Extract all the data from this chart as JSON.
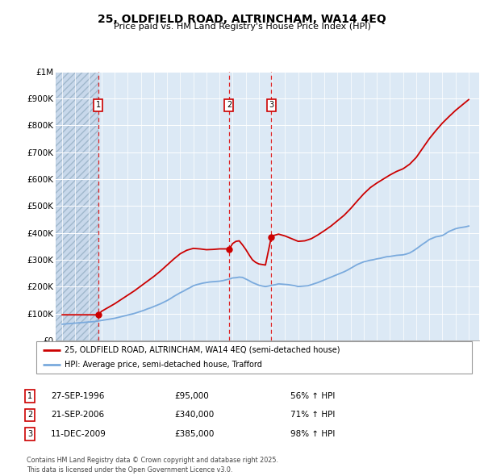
{
  "title": "25, OLDFIELD ROAD, ALTRINCHAM, WA14 4EQ",
  "subtitle": "Price paid vs. HM Land Registry's House Price Index (HPI)",
  "ylim": [
    0,
    1000000
  ],
  "yticks": [
    0,
    100000,
    200000,
    300000,
    400000,
    500000,
    600000,
    700000,
    800000,
    900000,
    1000000
  ],
  "ytick_labels": [
    "£0",
    "£100K",
    "£200K",
    "£300K",
    "£400K",
    "£500K",
    "£600K",
    "£700K",
    "£800K",
    "£900K",
    "£1M"
  ],
  "xlim_start": 1993.5,
  "xlim_end": 2025.8,
  "purchases": [
    {
      "label": "1",
      "date": 1996.74,
      "price": 95000
    },
    {
      "label": "2",
      "date": 2006.72,
      "price": 340000
    },
    {
      "label": "3",
      "date": 2009.95,
      "price": 385000
    }
  ],
  "hpi_line_color": "#7aaadd",
  "price_line_color": "#cc0000",
  "background_color": "#dce9f5",
  "grid_color": "#ffffff",
  "legend_label_price": "25, OLDFIELD ROAD, ALTRINCHAM, WA14 4EQ (semi-detached house)",
  "legend_label_hpi": "HPI: Average price, semi-detached house, Trafford",
  "table_rows": [
    {
      "num": "1",
      "date": "27-SEP-1996",
      "price": "£95,000",
      "hpi": "56% ↑ HPI"
    },
    {
      "num": "2",
      "date": "21-SEP-2006",
      "price": "£340,000",
      "hpi": "71% ↑ HPI"
    },
    {
      "num": "3",
      "date": "11-DEC-2009",
      "price": "£385,000",
      "hpi": "98% ↑ HPI"
    }
  ],
  "footer": "Contains HM Land Registry data © Crown copyright and database right 2025.\nThis data is licensed under the Open Government Licence v3.0.",
  "hpi_data_x": [
    1994.0,
    1994.25,
    1994.5,
    1994.75,
    1995.0,
    1995.25,
    1995.5,
    1995.75,
    1996.0,
    1996.25,
    1996.5,
    1996.75,
    1997.0,
    1997.25,
    1997.5,
    1997.75,
    1998.0,
    1998.25,
    1998.5,
    1998.75,
    1999.0,
    1999.25,
    1999.5,
    1999.75,
    2000.0,
    2000.25,
    2000.5,
    2000.75,
    2001.0,
    2001.25,
    2001.5,
    2001.75,
    2002.0,
    2002.25,
    2002.5,
    2002.75,
    2003.0,
    2003.25,
    2003.5,
    2003.75,
    2004.0,
    2004.25,
    2004.5,
    2004.75,
    2005.0,
    2005.25,
    2005.5,
    2005.75,
    2006.0,
    2006.25,
    2006.5,
    2006.75,
    2007.0,
    2007.25,
    2007.5,
    2007.75,
    2008.0,
    2008.25,
    2008.5,
    2008.75,
    2009.0,
    2009.25,
    2009.5,
    2009.75,
    2010.0,
    2010.25,
    2010.5,
    2010.75,
    2011.0,
    2011.25,
    2011.5,
    2011.75,
    2012.0,
    2012.25,
    2012.5,
    2012.75,
    2013.0,
    2013.25,
    2013.5,
    2013.75,
    2014.0,
    2014.25,
    2014.5,
    2014.75,
    2015.0,
    2015.25,
    2015.5,
    2015.75,
    2016.0,
    2016.25,
    2016.5,
    2016.75,
    2017.0,
    2017.25,
    2017.5,
    2017.75,
    2018.0,
    2018.25,
    2018.5,
    2018.75,
    2019.0,
    2019.25,
    2019.5,
    2019.75,
    2020.0,
    2020.25,
    2020.5,
    2020.75,
    2021.0,
    2021.25,
    2021.5,
    2021.75,
    2022.0,
    2022.25,
    2022.5,
    2022.75,
    2023.0,
    2023.25,
    2023.5,
    2023.75,
    2024.0,
    2024.25,
    2024.5,
    2024.75,
    2025.0
  ],
  "hpi_data_y": [
    60000,
    61000,
    62000,
    63000,
    64000,
    65000,
    66000,
    67000,
    68000,
    69000,
    70000,
    72000,
    74000,
    76000,
    78000,
    80000,
    82000,
    85000,
    88000,
    91000,
    94000,
    97000,
    100000,
    104000,
    108000,
    112000,
    117000,
    121000,
    126000,
    131000,
    136000,
    142000,
    148000,
    155000,
    163000,
    170000,
    177000,
    183000,
    190000,
    196000,
    203000,
    207000,
    210000,
    213000,
    215000,
    217000,
    218000,
    219000,
    220000,
    222000,
    225000,
    228000,
    232000,
    233000,
    235000,
    234000,
    228000,
    222000,
    215000,
    210000,
    205000,
    202000,
    200000,
    202000,
    205000,
    207000,
    210000,
    209000,
    208000,
    207000,
    205000,
    203000,
    200000,
    201000,
    202000,
    203000,
    207000,
    211000,
    215000,
    220000,
    225000,
    230000,
    235000,
    240000,
    245000,
    250000,
    255000,
    261000,
    268000,
    275000,
    282000,
    287000,
    292000,
    295000,
    298000,
    300000,
    303000,
    305000,
    308000,
    311000,
    312000,
    314000,
    316000,
    317000,
    318000,
    321000,
    325000,
    332000,
    340000,
    349000,
    358000,
    366000,
    375000,
    380000,
    385000,
    387000,
    390000,
    397000,
    405000,
    410000,
    415000,
    418000,
    420000,
    422000,
    425000
  ],
  "price_data_x": [
    1994.0,
    1996.74,
    1996.75,
    1997.0,
    1997.5,
    1998.0,
    1998.5,
    1999.0,
    1999.5,
    2000.0,
    2000.5,
    2001.0,
    2001.5,
    2002.0,
    2002.5,
    2003.0,
    2003.5,
    2004.0,
    2004.5,
    2005.0,
    2005.5,
    2006.0,
    2006.5,
    2006.72,
    2006.75,
    2007.0,
    2007.25,
    2007.5,
    2007.75,
    2008.0,
    2008.25,
    2008.5,
    2008.75,
    2009.0,
    2009.5,
    2009.95,
    2010.0,
    2010.5,
    2011.0,
    2011.5,
    2012.0,
    2012.5,
    2013.0,
    2013.5,
    2014.0,
    2014.5,
    2015.0,
    2015.5,
    2016.0,
    2016.5,
    2017.0,
    2017.5,
    2018.0,
    2018.5,
    2019.0,
    2019.5,
    2020.0,
    2020.5,
    2021.0,
    2021.5,
    2022.0,
    2022.5,
    2023.0,
    2023.5,
    2024.0,
    2024.5,
    2025.0
  ],
  "price_data_y": [
    95000,
    95000,
    95000,
    108000,
    122000,
    136000,
    152000,
    168000,
    184000,
    202000,
    220000,
    238000,
    258000,
    280000,
    302000,
    322000,
    335000,
    342000,
    340000,
    337000,
    338000,
    340000,
    340000,
    340000,
    340000,
    360000,
    368000,
    370000,
    355000,
    338000,
    318000,
    300000,
    290000,
    284000,
    280000,
    385000,
    388000,
    395000,
    388000,
    378000,
    368000,
    370000,
    378000,
    392000,
    408000,
    425000,
    445000,
    465000,
    490000,
    518000,
    545000,
    568000,
    585000,
    600000,
    615000,
    628000,
    638000,
    655000,
    680000,
    715000,
    750000,
    780000,
    808000,
    832000,
    855000,
    875000,
    895000
  ]
}
